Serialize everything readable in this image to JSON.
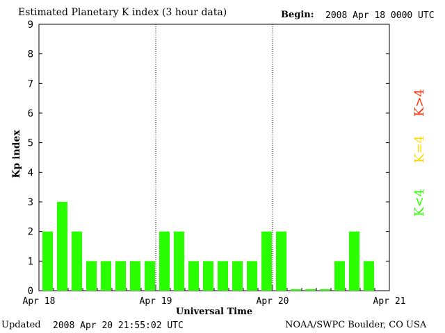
{
  "header": {
    "title": "Estimated Planetary K index (3 hour data)",
    "begin_label": "Begin:",
    "begin_value": "2008 Apr 18 0000 UTC"
  },
  "footer": {
    "updated_label": "Updated",
    "updated_value": "2008 Apr 20 21:55:02 UTC",
    "org": "NOAA/SWPC Boulder, CO USA"
  },
  "legend": [
    {
      "label": "K>4",
      "color": "#ff2a00"
    },
    {
      "label": "K=4",
      "color": "#ffd700"
    },
    {
      "label": "K<4",
      "color": "#2aff00"
    }
  ],
  "chart_data": {
    "type": "bar",
    "title": "Estimated Planetary K index (3 hour data)",
    "xlabel": "Universal Time",
    "ylabel": "Kp index",
    "ylim": [
      0,
      9
    ],
    "yticks": [
      0,
      1,
      2,
      3,
      4,
      5,
      6,
      7,
      8,
      9
    ],
    "day_labels": [
      "Apr 18",
      "Apr 19",
      "Apr 20",
      "Apr 21"
    ],
    "interval_hours": 3,
    "values": [
      2,
      3,
      2,
      1,
      1,
      1,
      1,
      1,
      2,
      2,
      1,
      1,
      1,
      1,
      1,
      2,
      2,
      0.05,
      0.05,
      0.05,
      1,
      2,
      1
    ],
    "bar_color": "#2aff00",
    "grid": "dotted day separators"
  }
}
